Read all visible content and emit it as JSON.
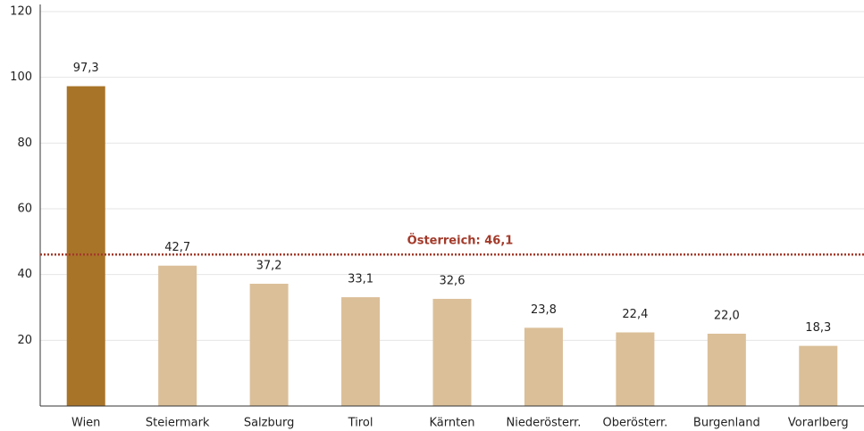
{
  "chart_data": {
    "type": "bar",
    "categories": [
      "Wien",
      "Steiermark",
      "Salzburg",
      "Tirol",
      "Kärnten",
      "Niederösterr.",
      "Oberösterr.",
      "Burgenland",
      "Vorarlberg"
    ],
    "values": [
      97.3,
      42.7,
      37.2,
      33.1,
      32.6,
      23.8,
      22.4,
      22.0,
      18.3
    ],
    "value_labels": [
      "97,3",
      "42,7",
      "37,2",
      "33,1",
      "32,6",
      "23,8",
      "22,4",
      "22,0",
      "18,3"
    ],
    "colors": [
      "#a87428",
      "#dbbf98",
      "#dbbf98",
      "#dbbf98",
      "#dbbf98",
      "#dbbf98",
      "#dbbf98",
      "#dbbf98",
      "#dbbf98"
    ],
    "ylim": [
      0,
      120
    ],
    "yticks": [
      20,
      40,
      60,
      80,
      100,
      120
    ],
    "grid": true,
    "reference_line": {
      "value": 46.1,
      "label": "Österreich: 46,1",
      "color": "#a33a2a"
    }
  }
}
